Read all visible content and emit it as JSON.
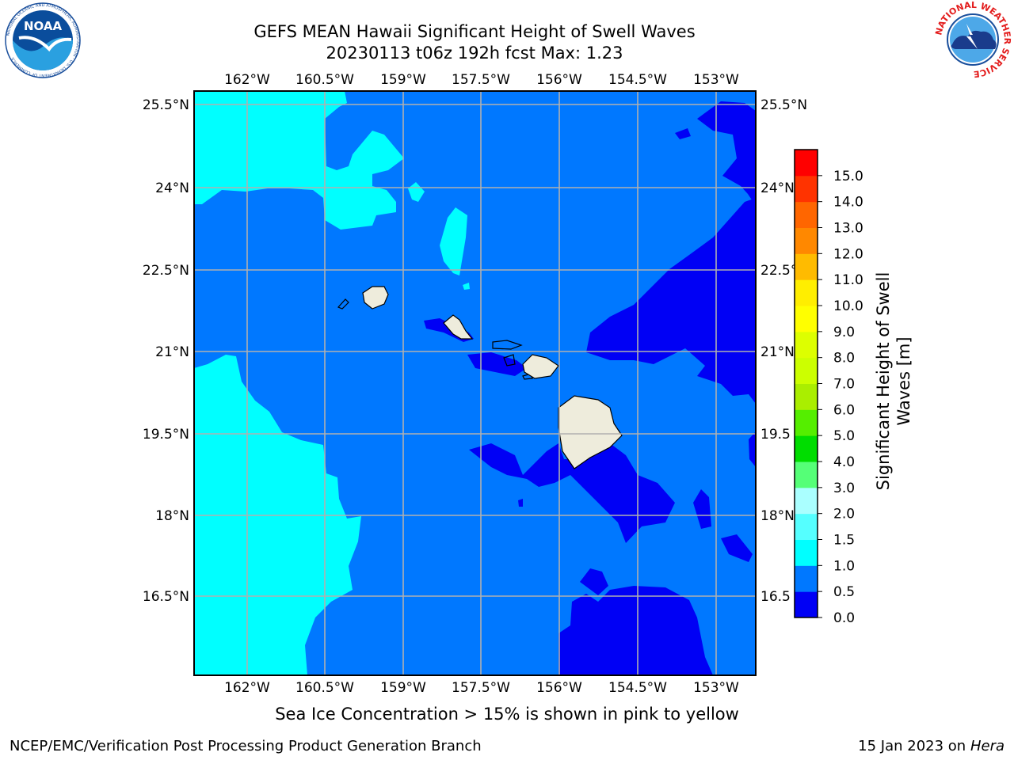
{
  "title": {
    "line1": "GEFS MEAN Hawaii Significant Height of Swell Waves",
    "line2": "20230113 t06z 192h fcst   Max: 1.23"
  },
  "map": {
    "lon_labels": [
      "162°W",
      "160.5°W",
      "159°W",
      "157.5°W",
      "156°W",
      "154.5°W",
      "153°W"
    ],
    "lat_labels_left": [
      "25.5°N",
      "24°N",
      "22.5°N",
      "21°N",
      "19.5°N",
      "18°N",
      "16.5°N"
    ],
    "lat_labels_right": [
      "25.5°N",
      "24°N",
      "22.5°",
      "21°N",
      "19.5",
      "18°N",
      "16.5"
    ],
    "fill_colors": {
      "bin_0_0_5": "#0000f5",
      "bin_0_5_1_0": "#0078ff",
      "bin_1_0_1_5": "#00ffff",
      "land": "#eeecdc"
    }
  },
  "colorbar": {
    "label": "Significant Height of Swell Waves [m]",
    "ticks": [
      "0.0",
      "0.5",
      "1.0",
      "1.5",
      "2.0",
      "3.0",
      "4.0",
      "5.0",
      "6.0",
      "7.0",
      "8.0",
      "9.0",
      "10.0",
      "11.0",
      "12.0",
      "13.0",
      "14.0",
      "15.0"
    ],
    "colors": [
      "#0000f5",
      "#0078ff",
      "#00ffff",
      "#55ffff",
      "#aaffff",
      "#55ff77",
      "#00dd00",
      "#55ee00",
      "#aaee00",
      "#ccff00",
      "#ddff00",
      "#ffff00",
      "#ffee00",
      "#ffbb00",
      "#ff8800",
      "#ff6600",
      "#ff3300",
      "#ff0000"
    ]
  },
  "logos": {
    "noaa_text": "NOAA",
    "noaa_ring": "NATIONAL OCEANIC AND ATMOSPHERIC ADMINISTRATION · U.S. DEPARTMENT OF COMMERCE",
    "nws_ring": "NATIONAL WEATHER SERVICE"
  },
  "footnote": "Sea Ice Concentration > 15% is shown in pink to yellow",
  "credit_left": "NCEP/EMC/Verification Post Processing Product Generation Branch",
  "credit_right_prefix": "15 Jan 2023 on ",
  "credit_right_host": "Hera"
}
